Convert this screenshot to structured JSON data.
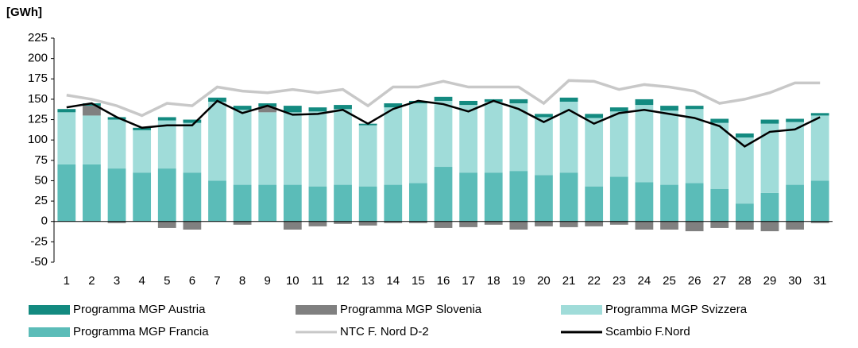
{
  "chart_data": {
    "type": "bar",
    "title": "[GWh]",
    "categories": [
      "1",
      "2",
      "3",
      "4",
      "5",
      "6",
      "7",
      "8",
      "9",
      "10",
      "11",
      "12",
      "13",
      "14",
      "15",
      "16",
      "17",
      "18",
      "19",
      "20",
      "21",
      "22",
      "23",
      "24",
      "25",
      "26",
      "27",
      "28",
      "29",
      "30",
      "31"
    ],
    "ylim": [
      -50,
      225
    ],
    "yticks": [
      -50,
      -25,
      0,
      25,
      50,
      75,
      100,
      125,
      150,
      175,
      200,
      225
    ],
    "stacked": true,
    "series": [
      {
        "name": "Programma MGP Austria",
        "type": "bar",
        "color": "#138a80",
        "values": [
          4,
          3,
          3,
          3,
          4,
          4,
          5,
          5,
          4,
          8,
          5,
          5,
          2,
          5,
          3,
          5,
          5,
          3,
          5,
          4,
          5,
          5,
          5,
          7,
          6,
          4,
          5,
          5,
          5,
          4,
          3
        ]
      },
      {
        "name": "Programma MGP Slovenia",
        "type": "bar",
        "color": "#808080",
        "values": [
          0,
          12,
          -2,
          0,
          -8,
          -10,
          0,
          -4,
          7,
          -10,
          -6,
          -3,
          -5,
          -2,
          -2,
          -8,
          -7,
          -4,
          -10,
          -6,
          -7,
          -6,
          -4,
          -10,
          -10,
          -12,
          -8,
          -10,
          -12,
          -10,
          -2
        ]
      },
      {
        "name": "Programma MGP Svizzera",
        "type": "bar",
        "color": "#a0dcd9",
        "values": [
          64,
          60,
          60,
          52,
          59,
          61,
          97,
          92,
          89,
          89,
          92,
          93,
          75,
          95,
          98,
          81,
          83,
          87,
          83,
          71,
          87,
          84,
          80,
          95,
          91,
          91,
          81,
          81,
          85,
          77,
          80
        ]
      },
      {
        "name": "Programma MGP Francia",
        "type": "bar",
        "color": "#5bbcb8",
        "values": [
          70,
          70,
          65,
          60,
          65,
          60,
          50,
          45,
          45,
          45,
          43,
          45,
          43,
          45,
          47,
          67,
          60,
          60,
          62,
          57,
          60,
          43,
          55,
          48,
          45,
          47,
          40,
          22,
          35,
          45,
          50
        ]
      },
      {
        "name": "NTC F. Nord D-2",
        "type": "line",
        "color": "#c8c8c8",
        "values": [
          155,
          150,
          142,
          130,
          145,
          142,
          165,
          160,
          158,
          162,
          158,
          162,
          142,
          165,
          165,
          172,
          165,
          165,
          165,
          145,
          173,
          172,
          162,
          168,
          165,
          160,
          145,
          150,
          158,
          170,
          170
        ]
      },
      {
        "name": "Scambio F.Nord",
        "type": "line",
        "color": "#000000",
        "values": [
          140,
          145,
          128,
          115,
          118,
          118,
          148,
          133,
          142,
          131,
          132,
          137,
          120,
          138,
          148,
          144,
          135,
          148,
          138,
          122,
          137,
          120,
          133,
          137,
          132,
          127,
          117,
          92,
          110,
          113,
          128
        ]
      }
    ]
  }
}
